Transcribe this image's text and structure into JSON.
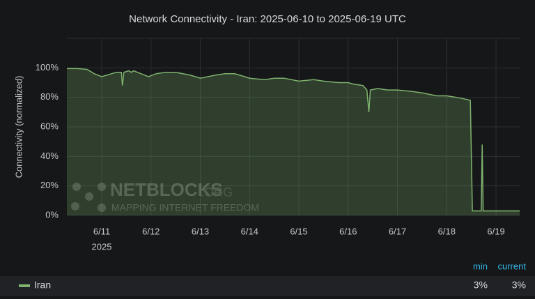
{
  "chart_data": {
    "type": "area",
    "title": "Network Connectivity - Iran: 2025-06-10 to 2025-06-19 UTC",
    "y_label": "Connectivity (normalized)",
    "year_label": "2025",
    "watermark": {
      "name": "NETBLOCKS",
      "suffix": ".ORG",
      "tagline": "MAPPING INTERNET FREEDOM"
    },
    "x": [
      10.293,
      10.5,
      10.7,
      10.85,
      11.0,
      11.1,
      11.3,
      11.4,
      11.42,
      11.45,
      11.55,
      11.6,
      11.65,
      11.8,
      11.95,
      12.1,
      12.3,
      12.5,
      12.8,
      13.0,
      13.3,
      13.5,
      13.7,
      13.9,
      14.0,
      14.3,
      14.5,
      14.7,
      15.0,
      15.3,
      15.5,
      15.8,
      16.0,
      16.1,
      16.3,
      16.38,
      16.42,
      16.45,
      16.6,
      16.8,
      17.0,
      17.3,
      17.5,
      17.8,
      18.0,
      18.2,
      18.35,
      18.48,
      18.52,
      18.65,
      18.7,
      18.72,
      18.74,
      18.9,
      19.1,
      19.3,
      19.48
    ],
    "series": [
      {
        "name": "Iran",
        "color": "#7eb26d",
        "values": [
          99.5,
          99.5,
          99,
          96,
          94,
          95,
          97,
          97,
          88,
          97,
          98,
          97,
          98,
          96,
          94,
          96,
          97,
          97,
          95,
          93,
          95,
          96,
          96,
          94,
          93,
          92,
          93,
          93,
          91,
          92,
          91,
          90,
          90,
          89,
          88,
          85,
          70,
          85,
          86,
          85,
          85,
          84,
          83,
          81,
          81,
          80,
          79,
          78,
          3,
          3,
          3,
          48,
          3,
          3,
          3,
          3,
          3
        ],
        "stats": [
          {
            "name": "min",
            "value": 3,
            "label": "3%"
          },
          {
            "name": "current",
            "value": 3,
            "label": "3%"
          }
        ]
      }
    ],
    "xlim": [
      10.293,
      19.48
    ],
    "xticks": [
      {
        "value": 11,
        "label": "6/11"
      },
      {
        "value": 12,
        "label": "6/12"
      },
      {
        "value": 13,
        "label": "6/13"
      },
      {
        "value": 14,
        "label": "6/14"
      },
      {
        "value": 15,
        "label": "6/15"
      },
      {
        "value": 16,
        "label": "6/16"
      },
      {
        "value": 17,
        "label": "6/17"
      },
      {
        "value": 18,
        "label": "6/18"
      },
      {
        "value": 19,
        "label": "6/19"
      }
    ],
    "ylim": [
      0,
      120
    ],
    "yticks": [
      {
        "value": 0,
        "label": "0%"
      },
      {
        "value": 20,
        "label": "20%"
      },
      {
        "value": 40,
        "label": "40%"
      },
      {
        "value": 60,
        "label": "60%"
      },
      {
        "value": 80,
        "label": "80%"
      },
      {
        "value": 100,
        "label": "100%"
      }
    ],
    "grid": true
  }
}
